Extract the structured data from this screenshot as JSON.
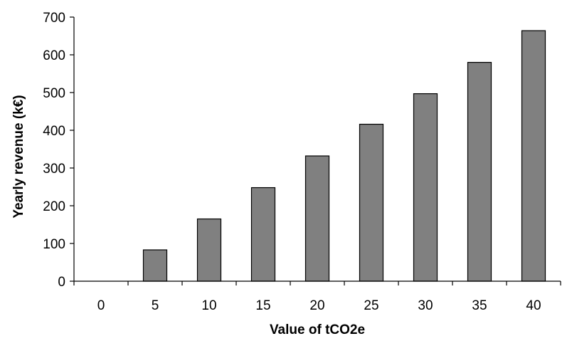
{
  "chart_data": {
    "type": "bar",
    "categories": [
      "0",
      "5",
      "10",
      "15",
      "20",
      "25",
      "30",
      "35",
      "40"
    ],
    "values": [
      0,
      83,
      165,
      248,
      332,
      416,
      497,
      580,
      664
    ],
    "xlabel": "Value of tCO2e",
    "ylabel": "Yearly revenue (k€)",
    "ylim": [
      0,
      700
    ],
    "yticks": [
      "0",
      "100",
      "200",
      "300",
      "400",
      "500",
      "600",
      "700"
    ],
    "bar_color": "#808080",
    "grid": false,
    "legend": "none"
  }
}
